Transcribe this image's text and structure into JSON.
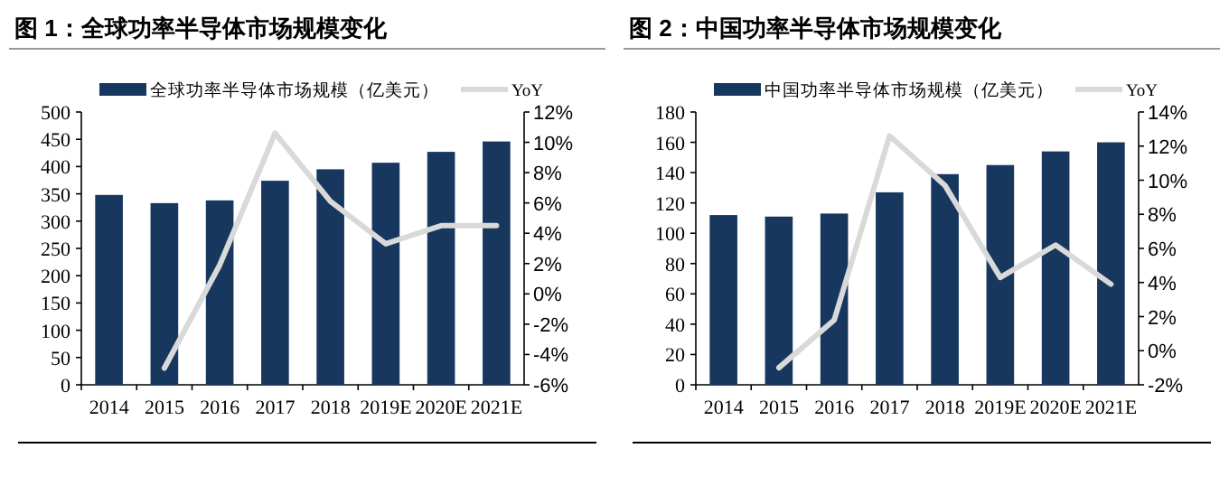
{
  "chart_data": [
    {
      "type": "bar",
      "title": "图 1：全球功率半导体市场规模变化",
      "categories": [
        "2014",
        "2015",
        "2016",
        "2017",
        "2018",
        "2019E",
        "2020E",
        "2021E"
      ],
      "series": [
        {
          "name": "全球功率半导体市场规模（亿美元）",
          "color": "#17375e",
          "values": [
            348,
            333,
            338,
            374,
            395,
            407,
            427,
            446
          ]
        },
        {
          "name": "YoY",
          "type": "line",
          "axis": "y2",
          "color": "#d9d9d9",
          "values": [
            null,
            -4.9,
            1.9,
            10.6,
            6.1,
            3.3,
            4.5,
            4.5
          ]
        }
      ],
      "ylim": [
        0,
        500
      ],
      "yticks": [
        0,
        50,
        100,
        150,
        200,
        250,
        300,
        350,
        400,
        450,
        500
      ],
      "y2lim": [
        -6,
        12
      ],
      "y2ticks": [
        {
          "value": -6,
          "label": "-6%"
        },
        {
          "value": -4,
          "label": "-4%"
        },
        {
          "value": -2,
          "label": "-2%"
        },
        {
          "value": 0,
          "label": "0%"
        },
        {
          "value": 2,
          "label": "2%"
        },
        {
          "value": 4,
          "label": "4%"
        },
        {
          "value": 6,
          "label": "6%"
        },
        {
          "value": 8,
          "label": "8%"
        },
        {
          "value": 10,
          "label": "10%"
        },
        {
          "value": 12,
          "label": "12%"
        }
      ],
      "legend": "top"
    },
    {
      "type": "bar",
      "title": "图 2：中国功率半导体市场规模变化",
      "categories": [
        "2014",
        "2015",
        "2016",
        "2017",
        "2018",
        "2019E",
        "2020E",
        "2021E"
      ],
      "series": [
        {
          "name": "中国功率半导体市场规模（亿美元）",
          "color": "#17375e",
          "values": [
            112,
            111,
            113,
            127,
            139,
            145,
            154,
            160
          ]
        },
        {
          "name": "YoY",
          "type": "line",
          "axis": "y2",
          "color": "#d9d9d9",
          "values": [
            null,
            -1.0,
            1.8,
            12.6,
            9.7,
            4.3,
            6.2,
            3.9
          ]
        }
      ],
      "ylim": [
        0,
        180
      ],
      "yticks": [
        0,
        20,
        40,
        60,
        80,
        100,
        120,
        140,
        160,
        180
      ],
      "y2lim": [
        -2,
        14
      ],
      "y2ticks": [
        {
          "value": -2,
          "label": "-2%"
        },
        {
          "value": 0,
          "label": "0%"
        },
        {
          "value": 2,
          "label": "2%"
        },
        {
          "value": 4,
          "label": "4%"
        },
        {
          "value": 6,
          "label": "6%"
        },
        {
          "value": 8,
          "label": "8%"
        },
        {
          "value": 10,
          "label": "10%"
        },
        {
          "value": 12,
          "label": "12%"
        },
        {
          "value": 14,
          "label": "14%"
        }
      ],
      "legend": "top"
    }
  ]
}
